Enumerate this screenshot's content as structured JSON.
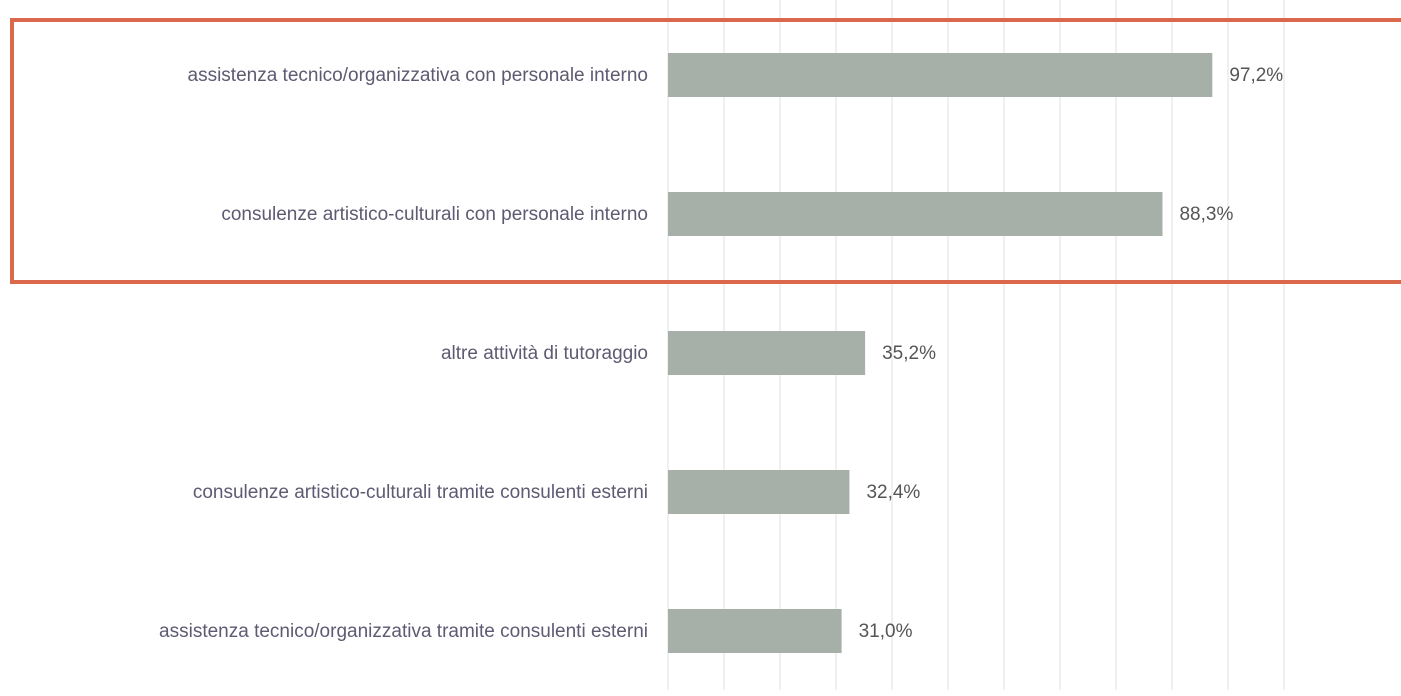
{
  "chart_data": {
    "type": "barh",
    "categories": [
      "assistenza tecnico/organizzativa con personale interno",
      "consulenze artistico-culturali con personale interno",
      "altre attività di tutoraggio",
      "consulenze artistico-culturali tramite consulenti esterni",
      "assistenza tecnico/organizzativa tramite consulenti esterni"
    ],
    "values": [
      97.2,
      88.3,
      35.2,
      32.4,
      31.0
    ],
    "value_labels": [
      "97,2%",
      "88,3%",
      "35,2%",
      "32,4%",
      "31,0%"
    ],
    "color": "#a6b0a8",
    "xlim": [
      0,
      110
    ],
    "xticks": [
      0,
      10,
      20,
      30,
      40,
      50,
      60,
      70,
      80,
      90,
      100,
      110
    ],
    "grid": true
  }
}
